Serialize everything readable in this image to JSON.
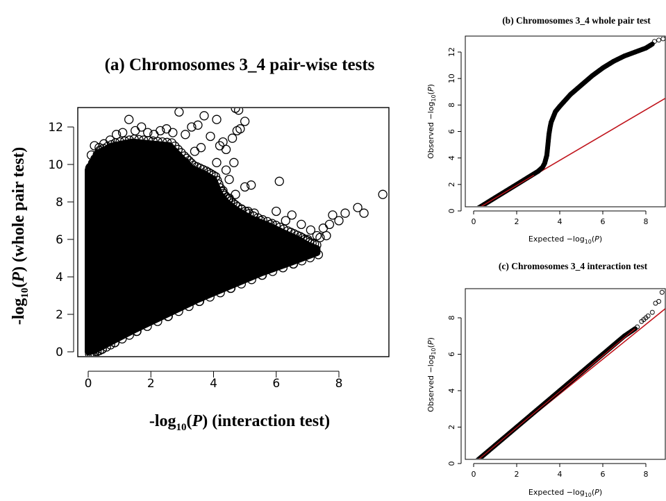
{
  "chart_data": [
    {
      "type": "scatter",
      "title": "(a) Chromosomes 3_4  pair-wise tests",
      "xlabel": {
        "prefix": "-log",
        "sub": "10",
        "mid": "(",
        "italic": "P",
        "suffix": ") (interaction test)"
      },
      "ylabel": {
        "prefix": "-log",
        "sub": "10",
        "mid": "(",
        "italic": "P",
        "suffix": ") (whole pair test)"
      },
      "xlim": [
        0,
        9.5
      ],
      "ylim": [
        0,
        13
      ],
      "xticks": [
        0,
        2,
        4,
        6,
        8
      ],
      "yticks": [
        0,
        2,
        4,
        6,
        8,
        10,
        12
      ],
      "grid": false,
      "density": "dense black cloud from x=0 to ~7, bounded below by y≈0.6x and above reaching y≈10-12",
      "points": [
        [
          0.05,
          9.8
        ],
        [
          0.1,
          10.5
        ],
        [
          0.2,
          11.0
        ],
        [
          0.35,
          10.9
        ],
        [
          0.5,
          11.1
        ],
        [
          0.7,
          11.3
        ],
        [
          0.9,
          11.6
        ],
        [
          1.1,
          11.7
        ],
        [
          1.3,
          12.4
        ],
        [
          1.5,
          11.8
        ],
        [
          1.7,
          12.0
        ],
        [
          1.9,
          11.7
        ],
        [
          2.1,
          11.6
        ],
        [
          2.3,
          11.8
        ],
        [
          2.5,
          11.9
        ],
        [
          2.7,
          11.7
        ],
        [
          2.9,
          12.8
        ],
        [
          3.1,
          11.6
        ],
        [
          3.3,
          12.0
        ],
        [
          3.5,
          12.1
        ],
        [
          3.7,
          12.6
        ],
        [
          3.9,
          11.5
        ],
        [
          4.1,
          12.4
        ],
        [
          4.3,
          11.2
        ],
        [
          4.4,
          10.8
        ],
        [
          4.2,
          11.0
        ],
        [
          4.5,
          9.2
        ],
        [
          4.7,
          13.0
        ],
        [
          4.8,
          12.9
        ],
        [
          4.75,
          11.8
        ],
        [
          4.85,
          11.9
        ],
        [
          5.0,
          12.3
        ],
        [
          4.6,
          11.4
        ],
        [
          4.65,
          10.1
        ],
        [
          4.5,
          8.2
        ],
        [
          4.7,
          8.4
        ],
        [
          5.0,
          8.8
        ],
        [
          5.2,
          8.9
        ],
        [
          6.1,
          9.1
        ],
        [
          4.4,
          9.7
        ],
        [
          4.3,
          8.6
        ],
        [
          4.1,
          10.1
        ],
        [
          3.2,
          9.1
        ],
        [
          3.5,
          8.9
        ],
        [
          3.7,
          8.5
        ],
        [
          3.9,
          8.3
        ],
        [
          4.0,
          7.8
        ],
        [
          4.2,
          7.9
        ],
        [
          4.9,
          7.6
        ],
        [
          5.1,
          7.5
        ],
        [
          5.3,
          7.4
        ],
        [
          5.5,
          7.0
        ],
        [
          5.8,
          6.8
        ],
        [
          6.0,
          7.5
        ],
        [
          6.3,
          7.0
        ],
        [
          6.5,
          7.3
        ],
        [
          6.8,
          6.8
        ],
        [
          7.1,
          6.5
        ],
        [
          7.3,
          6.2
        ],
        [
          7.5,
          6.6
        ],
        [
          7.7,
          6.8
        ],
        [
          7.8,
          7.3
        ],
        [
          8.0,
          7.0
        ],
        [
          8.2,
          7.4
        ],
        [
          8.8,
          7.4
        ],
        [
          8.6,
          7.7
        ],
        [
          9.4,
          8.4
        ],
        [
          7.6,
          6.2
        ],
        [
          7.4,
          6.1
        ],
        [
          7.0,
          6.0
        ],
        [
          6.9,
          5.6
        ],
        [
          5.6,
          6.3
        ],
        [
          5.7,
          6.6
        ],
        [
          5.9,
          6.1
        ],
        [
          2.8,
          8.8
        ],
        [
          3.0,
          8.5
        ],
        [
          3.3,
          7.7
        ],
        [
          2.6,
          8.0
        ],
        [
          3.1,
          10.1
        ],
        [
          3.4,
          10.7
        ],
        [
          3.6,
          10.9
        ],
        [
          2.2,
          10.3
        ],
        [
          1.6,
          10.4
        ],
        [
          1.2,
          10.5
        ]
      ]
    },
    {
      "type": "scatter",
      "title": "(b) Chromosomes 3_4  whole pair test",
      "xlabel": {
        "prefix": "Expected  −log",
        "sub": "10",
        "mid": "(",
        "italic": "P",
        "suffix": ")"
      },
      "ylabel": {
        "prefix": "Observed  −log",
        "sub": "10",
        "mid": "(",
        "italic": "P",
        "suffix": ")"
      },
      "xlim": [
        -0.3,
        9.0
      ],
      "ylim": [
        -0.5,
        13.5
      ],
      "xticks": [
        0,
        2,
        4,
        6,
        8
      ],
      "yticks": [
        0,
        2,
        4,
        6,
        8,
        10,
        12
      ],
      "reference_line": {
        "x": [
          0,
          9.0
        ],
        "y": [
          0,
          8.6
        ],
        "color": "#c0141c"
      },
      "series_curve": {
        "x": [
          0,
          0.5,
          1.0,
          1.5,
          2.0,
          2.5,
          3.0,
          3.2,
          3.3,
          3.4,
          3.45,
          3.5,
          3.55,
          3.6,
          3.7,
          3.8,
          4.0,
          4.5,
          5.0,
          5.5,
          6.0,
          6.5,
          7.0,
          7.5,
          8.0,
          8.3
        ],
        "y": [
          0,
          0.5,
          1.0,
          1.5,
          2.0,
          2.5,
          3.0,
          3.3,
          3.6,
          4.2,
          5.0,
          5.8,
          6.3,
          6.7,
          7.1,
          7.5,
          7.9,
          8.8,
          9.5,
          10.2,
          10.8,
          11.3,
          11.7,
          12.0,
          12.3,
          12.6
        ]
      },
      "tail_points": [
        [
          8.4,
          12.8
        ],
        [
          8.6,
          12.9
        ],
        [
          8.8,
          13.0
        ],
        [
          9.0,
          13.0
        ]
      ]
    },
    {
      "type": "scatter",
      "title": "(c) Chromosomes 3_4  interaction test",
      "xlabel": {
        "prefix": "Expected  −log",
        "sub": "10",
        "mid": "(",
        "italic": "P",
        "suffix": ")"
      },
      "ylabel": {
        "prefix": "Observed  −log",
        "sub": "10",
        "mid": "(",
        "italic": "P",
        "suffix": ")"
      },
      "xlim": [
        -0.3,
        9.0
      ],
      "ylim": [
        -0.3,
        9.8
      ],
      "xticks": [
        0,
        2,
        4,
        6,
        8
      ],
      "yticks": [
        0,
        2,
        4,
        6,
        8
      ],
      "reference_line": {
        "x": [
          0,
          8.9
        ],
        "y": [
          0,
          8.5
        ],
        "color": "#c0141c"
      },
      "series_curve": {
        "x": [
          0,
          1,
          2,
          3,
          4,
          5,
          6,
          7,
          7.5
        ],
        "y": [
          0,
          1.0,
          2.0,
          3.0,
          4.0,
          5.0,
          6.0,
          7.0,
          7.4
        ]
      },
      "tail_points": [
        [
          7.6,
          7.5
        ],
        [
          7.8,
          7.8
        ],
        [
          7.9,
          7.9
        ],
        [
          8.0,
          8.0
        ],
        [
          8.1,
          8.1
        ],
        [
          8.3,
          8.3
        ],
        [
          8.45,
          8.8
        ],
        [
          8.6,
          8.9
        ],
        [
          8.75,
          9.4
        ],
        [
          9.0,
          9.4
        ]
      ]
    }
  ]
}
